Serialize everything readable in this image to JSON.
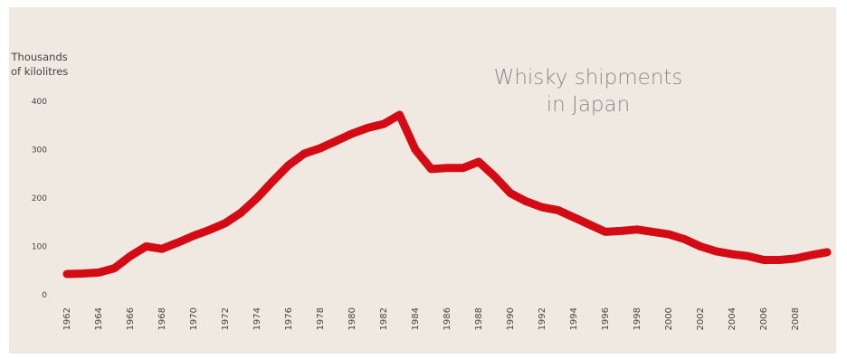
{
  "chart_data": {
    "type": "line",
    "title": "Whisky shipments in Japan",
    "title_lines": [
      "Whisky shipments",
      "in Japan"
    ],
    "ylabel": "Thousands of kilolitres",
    "ylabel_lines": [
      "Thousands",
      "of kilolitres"
    ],
    "xlabel": "",
    "ylim": [
      0,
      400
    ],
    "xlim": [
      1962,
      2010
    ],
    "yticks": [
      0,
      100,
      200,
      300,
      400
    ],
    "xticks": [
      1962,
      1964,
      1966,
      1968,
      1970,
      1972,
      1974,
      1976,
      1978,
      1980,
      1982,
      1984,
      1986,
      1988,
      1990,
      1992,
      1994,
      1996,
      1998,
      2000,
      2002,
      2004,
      2006,
      2008
    ],
    "grid": false,
    "line_color": "#d40b14",
    "x": [
      1962,
      1963,
      1964,
      1965,
      1966,
      1967,
      1968,
      1969,
      1970,
      1971,
      1972,
      1973,
      1974,
      1975,
      1976,
      1977,
      1978,
      1979,
      1980,
      1981,
      1982,
      1983,
      1984,
      1985,
      1986,
      1987,
      1988,
      1989,
      1990,
      1991,
      1992,
      1993,
      1994,
      1995,
      1996,
      1997,
      1998,
      1999,
      2000,
      2001,
      2002,
      2003,
      2004,
      2005,
      2006,
      2007,
      2008,
      2009,
      2010
    ],
    "values": [
      43,
      44,
      46,
      55,
      80,
      100,
      95,
      108,
      122,
      134,
      148,
      170,
      200,
      235,
      268,
      292,
      303,
      318,
      333,
      345,
      353,
      372,
      300,
      260,
      262,
      262,
      275,
      245,
      210,
      193,
      181,
      175,
      160,
      145,
      130,
      132,
      135,
      130,
      125,
      115,
      100,
      90,
      84,
      80,
      72,
      72,
      75,
      82,
      88
    ]
  }
}
